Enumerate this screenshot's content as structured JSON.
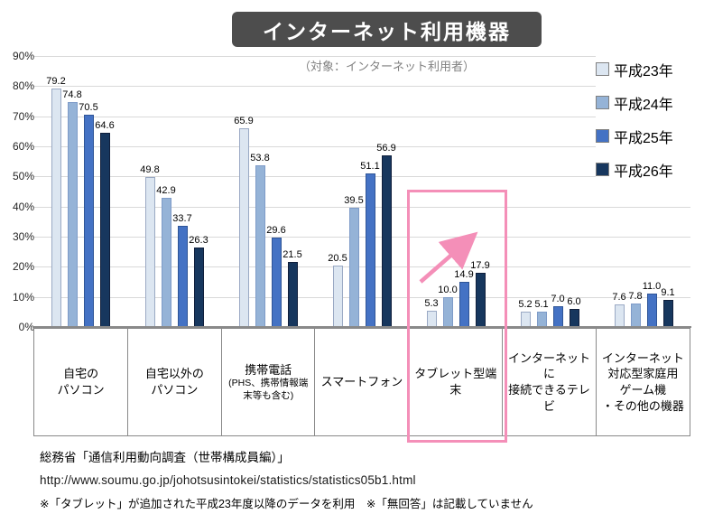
{
  "title": "インターネット利用機器",
  "subtitle": "（対象：インターネット利用者）",
  "chart_data": {
    "type": "bar",
    "title": "インターネット利用機器",
    "subtitle": "（対象：インターネット利用者）",
    "categories": [
      {
        "label": "自宅の\nパソコン"
      },
      {
        "label": "自宅以外の\nパソコン"
      },
      {
        "label": "携帯電話",
        "sub": "(PHS、携帯情報端\n末等も含む)"
      },
      {
        "label": "スマートフォン"
      },
      {
        "label": "タブレット型端末"
      },
      {
        "label": "インターネットに\n接続できるテレビ"
      },
      {
        "label": "インターネット\n対応型家庭用\nゲーム機\n・その他の機器"
      }
    ],
    "series": [
      {
        "name": "平成23年",
        "color": "#DCE6F1",
        "border": "#9AA9C4",
        "values": [
          79.2,
          49.8,
          65.9,
          20.5,
          5.3,
          5.2,
          7.6
        ]
      },
      {
        "name": "平成24年",
        "color": "#95B3D7",
        "border": "#7E9BC8",
        "values": [
          74.8,
          42.9,
          53.8,
          39.5,
          10.0,
          5.1,
          7.8
        ]
      },
      {
        "name": "平成25年",
        "color": "#4472C4",
        "border": "#2F5597",
        "values": [
          70.5,
          33.7,
          29.6,
          51.1,
          14.9,
          7.0,
          11.0
        ]
      },
      {
        "name": "平成26年",
        "color": "#17375E",
        "border": "#101F3C",
        "values": [
          64.6,
          26.3,
          21.5,
          56.9,
          17.9,
          6.0,
          9.1
        ]
      }
    ],
    "ylim": [
      0,
      90
    ],
    "ytick_step": 10,
    "ytick_suffix": "%",
    "grid": true,
    "legend_position": "right",
    "highlighted_category": "タブレット型端末"
  },
  "colors": {
    "title_box_bg": "#4D4D4D",
    "highlight_pink": "#F48FB8",
    "gridline": "#D9D9D9",
    "axis": "#898989"
  },
  "footer": {
    "source": "総務省「通信利用動向調査（世帯構成員編）」",
    "url": "http://www.soumu.go.jp/johotsusintokei/statistics/statistics05b1.html",
    "note": "※「タブレット」が追加された平成23年度以降のデータを利用　※「無回答」は記載していません"
  }
}
